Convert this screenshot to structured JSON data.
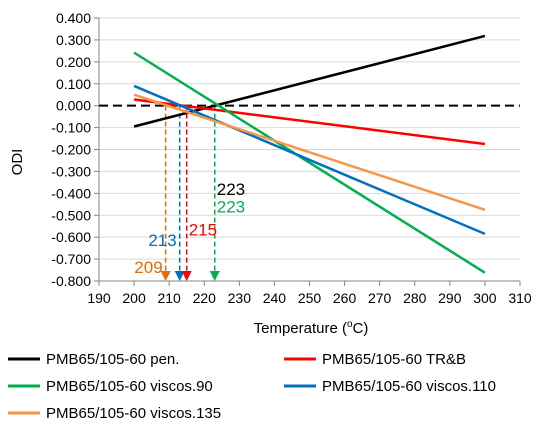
{
  "chart_data": {
    "type": "line",
    "xlabel": "Temperature (",
    "xlabel_sup": "o",
    "xlabel_end": "C)",
    "ylabel": "ODI",
    "xlim": [
      190,
      310
    ],
    "ylim": [
      -0.8,
      0.4
    ],
    "x_ticks": [
      190,
      200,
      210,
      220,
      230,
      240,
      250,
      260,
      270,
      280,
      290,
      300,
      310
    ],
    "y_ticks": [
      0.4,
      0.3,
      0.2,
      0.1,
      0.0,
      -0.1,
      -0.2,
      -0.3,
      -0.4,
      -0.5,
      -0.6,
      -0.7,
      -0.8
    ],
    "x_tick_labels": [
      "190",
      "200",
      "210",
      "220",
      "230",
      "240",
      "250",
      "260",
      "270",
      "280",
      "290",
      "300",
      "310"
    ],
    "y_tick_labels": [
      "0.400",
      "0.300",
      "0.200",
      "0.100",
      "0.000",
      "-0.100",
      "-0.200",
      "-0.300",
      "-0.400",
      "-0.500",
      "-0.600",
      "-0.700",
      "-0.800"
    ],
    "grid": "horizontal",
    "legend_position": "bottom",
    "zero_line": "dashed",
    "series": [
      {
        "name": "PMB65/105-60 pen.",
        "color": "#000000",
        "x": [
          200,
          300
        ],
        "y": [
          -0.095,
          0.318
        ]
      },
      {
        "name": "PMB65/105-60 TR&B",
        "color": "#ff0000",
        "x": [
          200,
          300
        ],
        "y": [
          0.028,
          -0.175
        ]
      },
      {
        "name": "PMB65/105-60 viscos.90",
        "color": "#00b050",
        "x": [
          200,
          300
        ],
        "y": [
          0.242,
          -0.762
        ]
      },
      {
        "name": "PMB65/105-60 viscos.110",
        "color": "#0070c0",
        "x": [
          200,
          300
        ],
        "y": [
          0.09,
          -0.585
        ]
      },
      {
        "name": "PMB65/105-60 viscos.135",
        "color": "#f79646",
        "x": [
          200,
          300
        ],
        "y": [
          0.05,
          -0.475
        ]
      }
    ],
    "annotations": [
      {
        "text": "209",
        "x": 209,
        "color": "#e46c0a",
        "label_y": -0.735,
        "label_side": "left"
      },
      {
        "text": "213",
        "x": 213,
        "color": "#0070c0",
        "label_y": -0.612,
        "label_side": "left"
      },
      {
        "text": "215",
        "x": 215,
        "color": "#ff0000",
        "label_y": -0.565,
        "label_side": "right"
      },
      {
        "text": "223",
        "x": 223,
        "color": "#000000",
        "label_y": -0.38,
        "label_side": "right"
      },
      {
        "text": "223",
        "x": 223,
        "color": "#00b050",
        "label_y": -0.46,
        "label_side": "right"
      }
    ],
    "drop_lines": [
      {
        "x": 209,
        "color": "#e46c0a"
      },
      {
        "x": 213,
        "color": "#0070c0"
      },
      {
        "x": 215,
        "color": "#ff0000"
      },
      {
        "x": 223,
        "color": "#00b050"
      }
    ]
  }
}
